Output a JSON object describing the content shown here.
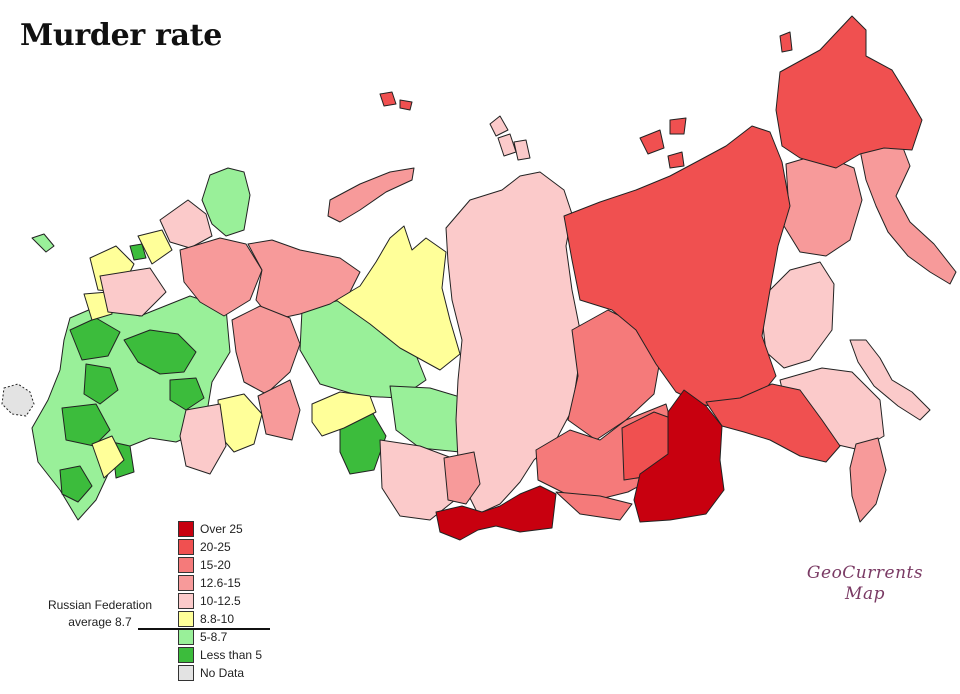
{
  "title": "Murder rate",
  "legend": {
    "items": [
      {
        "label": "Over  25",
        "color": "#c8000f"
      },
      {
        "label": "20-25",
        "color": "#f05050"
      },
      {
        "label": "15-20",
        "color": "#f57a7a"
      },
      {
        "label": "12.6-15",
        "color": "#f79a9a"
      },
      {
        "label": "10-12.5",
        "color": "#fbcaca"
      },
      {
        "label": "8.8-10",
        "color": "#ffff99"
      },
      {
        "label": "5-8.7",
        "color": "#99f099"
      },
      {
        "label": "Less than 5",
        "color": "#3cbc3c"
      },
      {
        "label": "No Data",
        "color": "#e3e3e3"
      }
    ]
  },
  "average_note": {
    "line1": "Russian Federation",
    "line2": "average  8.7"
  },
  "credit": {
    "line1": "GeoCurrents",
    "line2": "Map"
  }
}
